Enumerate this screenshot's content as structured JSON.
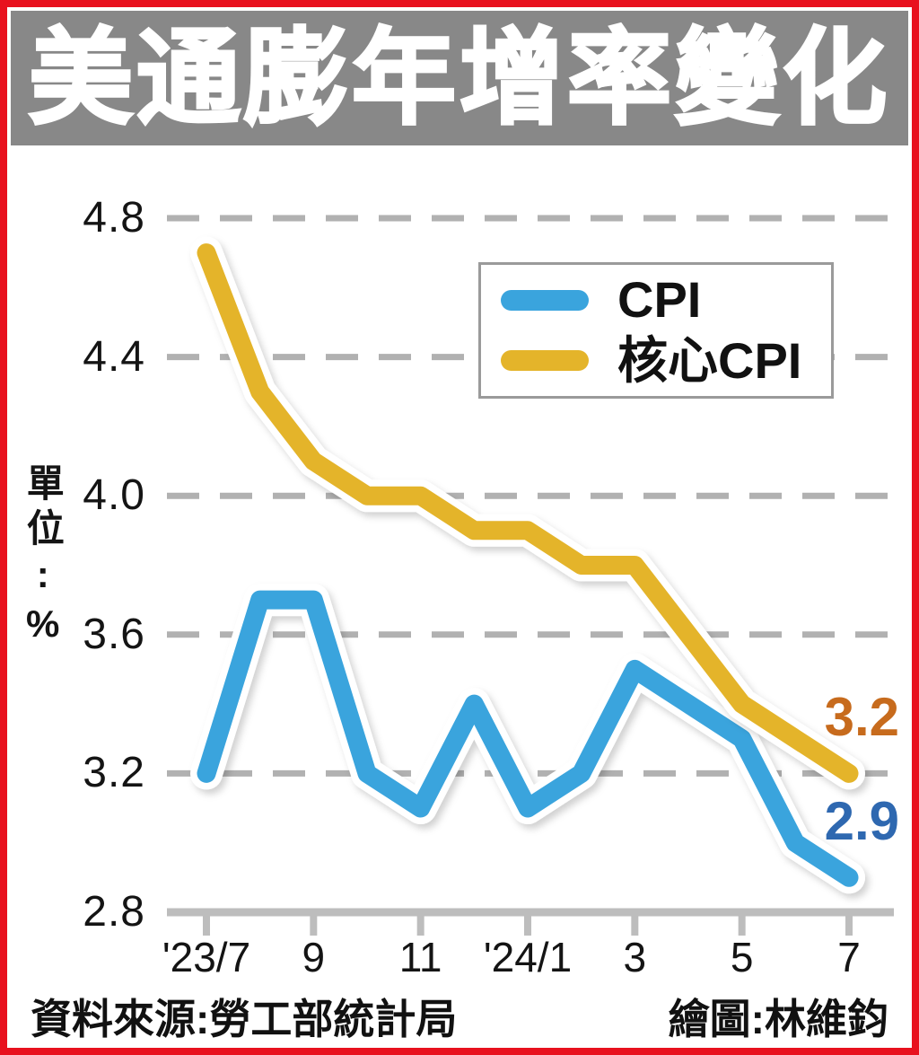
{
  "title": "美通膨年增率變化",
  "y_axis_unit": "單位:%",
  "legend": {
    "items": [
      {
        "label": "CPI",
        "color": "#3aa4dd"
      },
      {
        "label": "核心CPI",
        "color": "#e4b42a"
      }
    ]
  },
  "footer": {
    "source": "資料來源:勞工部統計局",
    "credit": "繪圖:林維鈞"
  },
  "colors": {
    "frame_red": "#e8111e",
    "title_bg": "#888888",
    "title_text": "#ffffff",
    "grid": "#b1b1b1",
    "axis": "#bdbdbd",
    "text": "#141414",
    "cpi_line": "#3aa4dd",
    "core_cpi_line": "#e4b42a",
    "cpi_end_label": "#2e68b0",
    "core_cpi_end_label": "#c76b1d"
  },
  "chart_data": {
    "type": "line",
    "categories": [
      "'23/7",
      "8",
      "9",
      "10",
      "11",
      "12",
      "'24/1",
      "2",
      "3",
      "4",
      "5",
      "6",
      "7"
    ],
    "x_tick_labels": [
      "'23/7",
      "9",
      "11",
      "'24/1",
      "3",
      "5",
      "7"
    ],
    "x_tick_indices": [
      0,
      2,
      4,
      6,
      8,
      10,
      12
    ],
    "series": [
      {
        "name": "CPI",
        "color": "#3aa4dd",
        "values": [
          3.2,
          3.7,
          3.7,
          3.2,
          3.1,
          3.4,
          3.1,
          3.2,
          3.5,
          3.4,
          3.3,
          3.0,
          2.9
        ],
        "end_label": "2.9",
        "end_label_color": "#2e68b0"
      },
      {
        "name": "核心CPI",
        "color": "#e4b42a",
        "values": [
          4.7,
          4.3,
          4.1,
          4.0,
          4.0,
          3.9,
          3.9,
          3.8,
          3.8,
          3.6,
          3.4,
          3.3,
          3.2
        ],
        "end_label": "3.2",
        "end_label_color": "#c76b1d"
      }
    ],
    "yticks": [
      4.8,
      4.4,
      4.0,
      3.6,
      3.2,
      2.8
    ],
    "ylim": [
      2.8,
      4.9
    ],
    "xlabel": "",
    "ylabel": "單位:%",
    "grid": "horizontal-dashed",
    "legend_position": "upper-right"
  }
}
